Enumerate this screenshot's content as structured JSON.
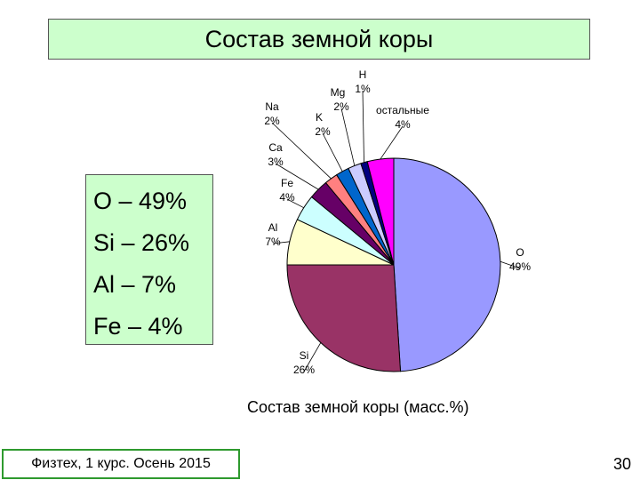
{
  "slide": {
    "title": "Состав земной коры",
    "summary": [
      {
        "text": "O – 49%"
      },
      {
        "text": "Si – 26%"
      },
      {
        "text": "Al – 7%"
      },
      {
        "text": "Fe – 4%"
      }
    ],
    "caption": "Состав земной коры (масс.%)",
    "footer": "Физтех, 1 курс. Осень 2015",
    "page_number": "30"
  },
  "chart_data": {
    "type": "pie",
    "title": "",
    "slices": [
      {
        "name": "O",
        "value": 49,
        "label_name": "O",
        "label_pct": "49%",
        "color": "#9999ff"
      },
      {
        "name": "Si",
        "value": 26,
        "label_name": "Si",
        "label_pct": "26%",
        "color": "#993366"
      },
      {
        "name": "Al",
        "value": 7,
        "label_name": "Al",
        "label_pct": "7%",
        "color": "#ffffcc"
      },
      {
        "name": "Fe",
        "value": 4,
        "label_name": "Fe",
        "label_pct": "4%",
        "color": "#ccffff"
      },
      {
        "name": "Ca",
        "value": 3,
        "label_name": "Ca",
        "label_pct": "3%",
        "color": "#660066"
      },
      {
        "name": "Na",
        "value": 2,
        "label_name": "Na",
        "label_pct": "2%",
        "color": "#ff8080"
      },
      {
        "name": "K",
        "value": 2,
        "label_name": "K",
        "label_pct": "2%",
        "color": "#0066cc"
      },
      {
        "name": "Mg",
        "value": 2,
        "label_name": "Mg",
        "label_pct": "2%",
        "color": "#ccccff"
      },
      {
        "name": "H",
        "value": 1,
        "label_name": "H",
        "label_pct": "1%",
        "color": "#000080"
      },
      {
        "name": "остальные",
        "value": 4,
        "label_name": "остальные",
        "label_pct": "4%",
        "color": "#ff00ff"
      }
    ]
  }
}
